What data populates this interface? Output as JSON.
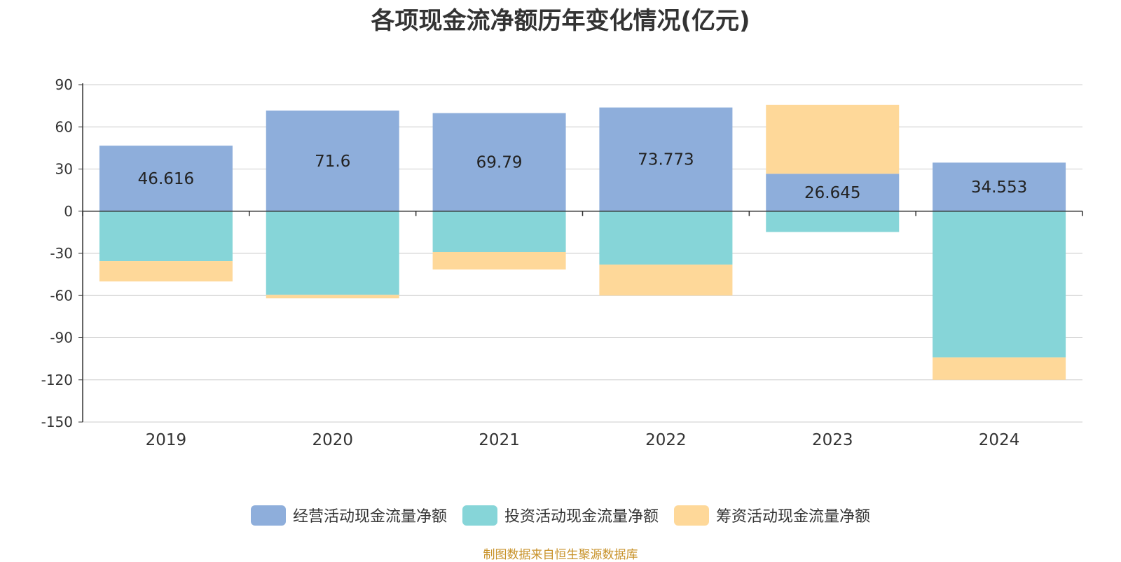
{
  "colors": {
    "operating": "#8eaedb",
    "investing": "#86d5d8",
    "financing": "#fed899",
    "source": "#c8922a",
    "text": "#333333",
    "grid": "#cccccc"
  },
  "chart_data": {
    "type": "bar",
    "stacked": true,
    "title": "各项现金流净额历年变化情况(亿元)",
    "categories": [
      "2019",
      "2020",
      "2021",
      "2022",
      "2023",
      "2024"
    ],
    "ylim": [
      -150,
      90
    ],
    "yticks": [
      90,
      60,
      30,
      0,
      -30,
      -60,
      -90,
      -120,
      -150
    ],
    "grid": true,
    "legend_position": "bottom",
    "series": [
      {
        "name": "经营活动现金流量净额",
        "key": "operating",
        "values": [
          46.616,
          71.6,
          69.79,
          73.773,
          26.645,
          34.553
        ],
        "labels": [
          "46.616",
          "71.6",
          "69.79",
          "73.773",
          "26.645",
          "34.553"
        ]
      },
      {
        "name": "投资活动现金流量净额",
        "key": "investing",
        "values": [
          -35.5,
          -59.5,
          -29.0,
          -38.0,
          -14.8,
          -104.0
        ]
      },
      {
        "name": "筹资活动现金流量净额",
        "key": "financing",
        "values": [
          -14.5,
          -2.5,
          -12.5,
          -22.0,
          49.0,
          -16.0
        ]
      }
    ]
  },
  "source_note": "制图数据来自恒生聚源数据库"
}
